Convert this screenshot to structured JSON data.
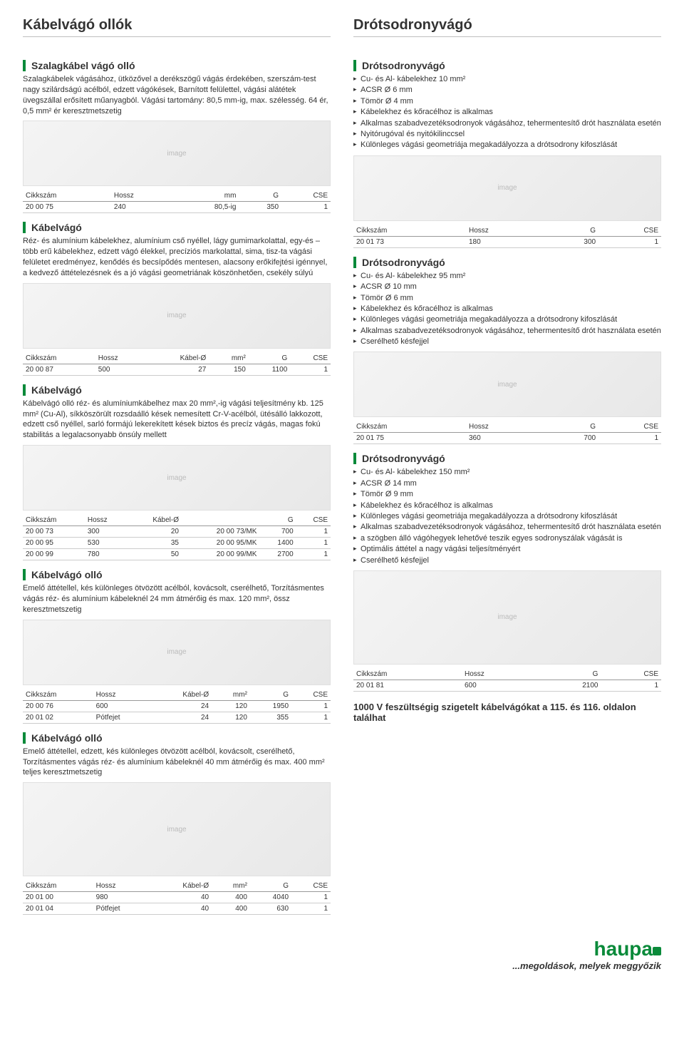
{
  "titles": {
    "left": "Kábelvágó ollók",
    "right": "Drótsodronyvágó"
  },
  "sec1": {
    "h": "Szalagkábel vágó olló",
    "d": "Szalagkábelek vágásához, ütközővel a derékszögű vágás érdekében, szerszám-test nagy szilárdságú acélból, edzett vágókések, Barnított felülettel, vágási alátétek üvegszállal erősített műanyagból. Vágási tartomány: 80,5 mm-ig, max. szélesség. 64 ér, 0,5 mm² ér keresztmetszetig",
    "th": [
      "Cikkszám",
      "Hossz",
      "mm",
      "G",
      "CSE"
    ],
    "r": [
      [
        "20 00 75",
        "240",
        "80,5-ig",
        "350",
        "1"
      ]
    ]
  },
  "sec2": {
    "h": "Kábelvágó",
    "d": "Réz- és alumínium kábelekhez, alumínium cső nyéllel, lágy gumimarkolattal, egy-és – több erű kábelekhez, edzett vágó élekkel, precíziós markolattal, sima, tisz-ta vágási felületet eredményez, kenődés és becsípődés mentesen, alacsony erőkifejtési igénnyel, a kedvező áttételezésnek és a jó vágási geometriának köszönhetően, csekély súlyú",
    "th": [
      "Cikkszám",
      "Hossz",
      "Kábel-Ø",
      "mm²",
      "G",
      "CSE"
    ],
    "r": [
      [
        "20 00 87",
        "500",
        "27",
        "150",
        "1100",
        "1"
      ]
    ]
  },
  "sec3": {
    "h": "Kábelvágó",
    "d": "Kábelvágó olló réz- és alumíniumkábelhez max 20 mm²,-ig vágási teljesítmény kb. 125 mm² (Cu-Al), síkköszörült rozsdaálló kések nemesített Cr-V-acélból, ütésálló lakkozott, edzett cső nyéllel, sarló formájú lekerekített kések biztos és precíz vágás, magas fokú stabilitás a legalacsonyabb önsúly mellett",
    "th": [
      "Cikkszám",
      "Hossz",
      "Kábel-Ø",
      "",
      "G",
      "CSE"
    ],
    "r": [
      [
        "20 00 73",
        "300",
        "20",
        "20 00 73/MK",
        "700",
        "1"
      ],
      [
        "20 00 95",
        "530",
        "35",
        "20 00 95/MK",
        "1400",
        "1"
      ],
      [
        "20 00 99",
        "780",
        "50",
        "20 00 99/MK",
        "2700",
        "1"
      ]
    ]
  },
  "sec4": {
    "h": "Kábelvágó olló",
    "d": "Emelő áttétellel, kés különleges ötvözött acélból, kovácsolt, cserélhető, Torzításmentes vágás réz- és alumínium kábeleknél 24 mm átmérőig és max. 120 mm², össz keresztmetszetig",
    "th": [
      "Cikkszám",
      "Hossz",
      "Kábel-Ø",
      "mm²",
      "G",
      "CSE"
    ],
    "r": [
      [
        "20 00 76",
        "600",
        "24",
        "120",
        "1950",
        "1"
      ],
      [
        "20 01 02",
        "Pótfejet",
        "24",
        "120",
        "355",
        "1"
      ]
    ]
  },
  "sec5": {
    "h": "Kábelvágó olló",
    "d": "Emelő áttétellel, edzett, kés különleges ötvözött acélból, kovácsolt, cserélhető, Torzításmentes vágás réz- és alumínium kábeleknél 40 mm átmérőig és max. 400 mm² teljes keresztmetszetig",
    "th": [
      "Cikkszám",
      "Hossz",
      "Kábel-Ø",
      "mm²",
      "G",
      "CSE"
    ],
    "r": [
      [
        "20 01 00",
        "980",
        "40",
        "400",
        "4040",
        "1"
      ],
      [
        "20 01 04",
        "Pótfejet",
        "40",
        "400",
        "630",
        "1"
      ]
    ]
  },
  "rsec1": {
    "h": "Drótsodronyvágó",
    "specs": [
      "Cu- és Al- kábelekhez 10 mm²",
      "ACSR Ø 6 mm",
      "Tömör Ø 4 mm",
      "Kábelekhez és kőracélhoz is alkalmas",
      "Alkalmas szabadvezetéksodronyok vágásához, tehermentesítő drót használata esetén",
      "Nyitórugóval és nyitókilinccsel",
      "Különleges vágási geometriája megakadályozza a drótsodrony kifoszlását"
    ],
    "th": [
      "Cikkszám",
      "Hossz",
      "G",
      "CSE"
    ],
    "r": [
      [
        "20 01 73",
        "180",
        "300",
        "1"
      ]
    ]
  },
  "rsec2": {
    "h": "Drótsodronyvágó",
    "specs": [
      "Cu- és Al- kábelekhez 95 mm²",
      "ACSR Ø 10 mm",
      "Tömör Ø 6 mm",
      "Kábelekhez és kőracélhoz is alkalmas",
      "Különleges vágási geometriája megakadályozza a drótsodrony kifoszlását",
      "Alkalmas szabadvezetéksodronyok vágásához, tehermentesítő drót használata esetén",
      "Cserélhető késfejjel"
    ],
    "th": [
      "Cikkszám",
      "Hossz",
      "G",
      "CSE"
    ],
    "r": [
      [
        "20 01 75",
        "360",
        "700",
        "1"
      ]
    ]
  },
  "rsec3": {
    "h": "Drótsodronyvágó",
    "specs": [
      "Cu- és Al- kábelekhez 150 mm²",
      "ACSR Ø 14 mm",
      "Tömör Ø 9 mm",
      "Kábelekhez és kőracélhoz is alkalmas",
      "Különleges vágási geometriája megakadályozza a drótsodrony kifoszlását",
      "Alkalmas szabadvezetéksodronyok vágásához, tehermentesítő drót használata esetén",
      "a szögben álló vágóhegyek lehetővé teszik egyes sodronyszálak vágását is",
      "Optimális áttétel a nagy vágási teljesítményért",
      "Cserélhető késfejjel"
    ],
    "th": [
      "Cikkszám",
      "Hossz",
      "G",
      "CSE"
    ],
    "r": [
      [
        "20 01 81",
        "600",
        "2100",
        "1"
      ]
    ]
  },
  "note": "1000 V feszültségig szigetelt kábelvágókat a 115. és 116. oldalon találhat",
  "brand": "haupa",
  "tagline": "...megoldások, melyek meggyőzik"
}
